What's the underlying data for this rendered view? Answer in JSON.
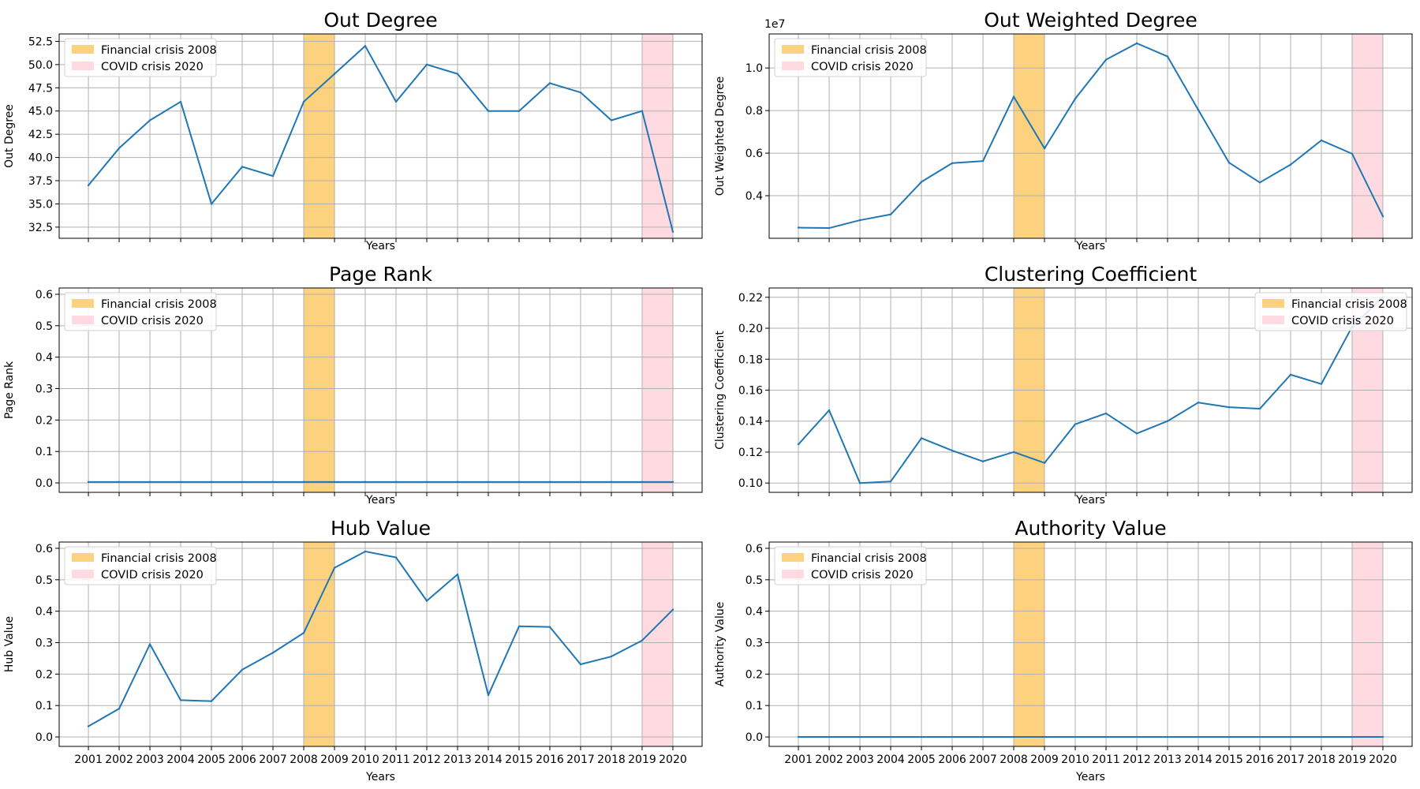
{
  "colors": {
    "line": "#1f77b4",
    "financial_band": "#fdd27f",
    "covid_band": "#ffdbe1",
    "grid": "#b0b0b0"
  },
  "legend": {
    "financial": "Financial crisis 2008",
    "covid": "COVID crisis 2020"
  },
  "chart_data": [
    {
      "type": "line",
      "title": "Out Degree",
      "xlabel": "Years",
      "ylabel": "Out Degree",
      "show_xtick_labels": false,
      "legend_placement": "top-left",
      "grid": true,
      "ylim": [
        31.3,
        53.3
      ],
      "yticks": [
        32.5,
        35.0,
        37.5,
        40.0,
        42.5,
        45.0,
        47.5,
        50.0,
        52.5
      ],
      "ytick_labels": [
        "32.5",
        "35.0",
        "37.5",
        "40.0",
        "42.5",
        "45.0",
        "47.5",
        "50.0",
        "52.5"
      ],
      "categories": [
        "2001",
        "2002",
        "2003",
        "2004",
        "2005",
        "2006",
        "2007",
        "2008",
        "2009",
        "2010",
        "2011",
        "2012",
        "2013",
        "2014",
        "2015",
        "2016",
        "2017",
        "2018",
        "2019",
        "2020"
      ],
      "values": [
        37,
        41,
        44,
        46,
        35,
        39,
        38,
        46,
        49,
        52,
        46,
        50,
        49,
        45,
        45,
        48,
        47,
        44,
        45,
        32
      ],
      "bands": [
        {
          "from": "2008",
          "to": "2009",
          "label": "Financial crisis 2008"
        },
        {
          "from": "2019",
          "to": "2020",
          "label": "COVID crisis 2020"
        }
      ]
    },
    {
      "type": "line",
      "title": "Out Weighted Degree",
      "xlabel": "Years",
      "ylabel": "Out Weighted Degree",
      "y_multiplier": "1e7",
      "show_xtick_labels": false,
      "legend_placement": "top-left",
      "grid": true,
      "ylim": [
        0.2,
        1.16
      ],
      "yticks": [
        0.4,
        0.6,
        0.8,
        1.0
      ],
      "ytick_labels": [
        "0.4",
        "0.6",
        "0.8",
        "1.0"
      ],
      "categories": [
        "2001",
        "2002",
        "2003",
        "2004",
        "2005",
        "2006",
        "2007",
        "2008",
        "2009",
        "2010",
        "2011",
        "2012",
        "2013",
        "2014",
        "2015",
        "2016",
        "2017",
        "2018",
        "2019",
        "2020"
      ],
      "values": [
        0.25,
        0.248,
        0.285,
        0.312,
        0.465,
        0.553,
        0.563,
        0.865,
        0.622,
        0.856,
        1.039,
        1.116,
        1.054,
        0.803,
        0.555,
        0.462,
        0.546,
        0.66,
        0.597,
        0.303
      ],
      "bands": [
        {
          "from": "2008",
          "to": "2009",
          "label": "Financial crisis 2008"
        },
        {
          "from": "2019",
          "to": "2020",
          "label": "COVID crisis 2020"
        }
      ]
    },
    {
      "type": "line",
      "title": "Page Rank",
      "xlabel": "Years",
      "ylabel": "Page Rank",
      "show_xtick_labels": false,
      "legend_placement": "top-left",
      "grid": true,
      "ylim": [
        -0.03,
        0.62
      ],
      "yticks": [
        0.0,
        0.1,
        0.2,
        0.3,
        0.4,
        0.5,
        0.6
      ],
      "ytick_labels": [
        "0.0",
        "0.1",
        "0.2",
        "0.3",
        "0.4",
        "0.5",
        "0.6"
      ],
      "categories": [
        "2001",
        "2002",
        "2003",
        "2004",
        "2005",
        "2006",
        "2007",
        "2008",
        "2009",
        "2010",
        "2011",
        "2012",
        "2013",
        "2014",
        "2015",
        "2016",
        "2017",
        "2018",
        "2019",
        "2020"
      ],
      "values": [
        0.003,
        0.003,
        0.003,
        0.003,
        0.003,
        0.003,
        0.003,
        0.003,
        0.003,
        0.003,
        0.003,
        0.003,
        0.003,
        0.003,
        0.003,
        0.003,
        0.003,
        0.003,
        0.003,
        0.003
      ],
      "bands": [
        {
          "from": "2008",
          "to": "2009",
          "label": "Financial crisis 2008"
        },
        {
          "from": "2019",
          "to": "2020",
          "label": "COVID crisis 2020"
        }
      ]
    },
    {
      "type": "line",
      "title": "Clustering Coefficient",
      "xlabel": "Years",
      "ylabel": "Clustering Coefficient",
      "show_xtick_labels": false,
      "legend_placement": "top-right",
      "grid": true,
      "ylim": [
        0.094,
        0.226
      ],
      "yticks": [
        0.1,
        0.12,
        0.14,
        0.16,
        0.18,
        0.2,
        0.22
      ],
      "ytick_labels": [
        "0.10",
        "0.12",
        "0.14",
        "0.16",
        "0.18",
        "0.20",
        "0.22"
      ],
      "categories": [
        "2001",
        "2002",
        "2003",
        "2004",
        "2005",
        "2006",
        "2007",
        "2008",
        "2009",
        "2010",
        "2011",
        "2012",
        "2013",
        "2014",
        "2015",
        "2016",
        "2017",
        "2018",
        "2019",
        "2020"
      ],
      "values": [
        0.125,
        0.147,
        0.1,
        0.101,
        0.129,
        0.121,
        0.114,
        0.12,
        0.113,
        0.138,
        0.145,
        0.132,
        0.14,
        0.152,
        0.149,
        0.148,
        0.17,
        0.164,
        0.201,
        0.22
      ],
      "bands": [
        {
          "from": "2008",
          "to": "2009",
          "label": "Financial crisis 2008"
        },
        {
          "from": "2019",
          "to": "2020",
          "label": "COVID crisis 2020"
        }
      ]
    },
    {
      "type": "line",
      "title": "Hub Value",
      "xlabel": "Years",
      "ylabel": "Hub Value",
      "show_xtick_labels": true,
      "legend_placement": "top-left",
      "grid": true,
      "ylim": [
        -0.03,
        0.62
      ],
      "yticks": [
        0.0,
        0.1,
        0.2,
        0.3,
        0.4,
        0.5,
        0.6
      ],
      "ytick_labels": [
        "0.0",
        "0.1",
        "0.2",
        "0.3",
        "0.4",
        "0.5",
        "0.6"
      ],
      "categories": [
        "2001",
        "2002",
        "2003",
        "2004",
        "2005",
        "2006",
        "2007",
        "2008",
        "2009",
        "2010",
        "2011",
        "2012",
        "2013",
        "2014",
        "2015",
        "2016",
        "2017",
        "2018",
        "2019",
        "2020"
      ],
      "values": [
        0.034,
        0.09,
        0.295,
        0.117,
        0.114,
        0.214,
        0.268,
        0.331,
        0.538,
        0.59,
        0.571,
        0.433,
        0.517,
        0.133,
        0.352,
        0.35,
        0.231,
        0.256,
        0.307,
        0.405
      ],
      "bands": [
        {
          "from": "2008",
          "to": "2009",
          "label": "Financial crisis 2008"
        },
        {
          "from": "2019",
          "to": "2020",
          "label": "COVID crisis 2020"
        }
      ]
    },
    {
      "type": "line",
      "title": "Authority Value",
      "xlabel": "Years",
      "ylabel": "Authority Value",
      "show_xtick_labels": true,
      "legend_placement": "top-left",
      "grid": true,
      "ylim": [
        -0.03,
        0.62
      ],
      "yticks": [
        0.0,
        0.1,
        0.2,
        0.3,
        0.4,
        0.5,
        0.6
      ],
      "ytick_labels": [
        "0.0",
        "0.1",
        "0.2",
        "0.3",
        "0.4",
        "0.5",
        "0.6"
      ],
      "categories": [
        "2001",
        "2002",
        "2003",
        "2004",
        "2005",
        "2006",
        "2007",
        "2008",
        "2009",
        "2010",
        "2011",
        "2012",
        "2013",
        "2014",
        "2015",
        "2016",
        "2017",
        "2018",
        "2019",
        "2020"
      ],
      "values": [
        0.0,
        0.0,
        0.0,
        0.0,
        0.0,
        0.0,
        0.0,
        0.0,
        0.0,
        0.0,
        0.0,
        0.0,
        0.0,
        0.0,
        0.0,
        0.0,
        0.0,
        0.0,
        0.0,
        0.0
      ],
      "bands": [
        {
          "from": "2008",
          "to": "2009",
          "label": "Financial crisis 2008"
        },
        {
          "from": "2019",
          "to": "2020",
          "label": "COVID crisis 2020"
        }
      ]
    }
  ]
}
